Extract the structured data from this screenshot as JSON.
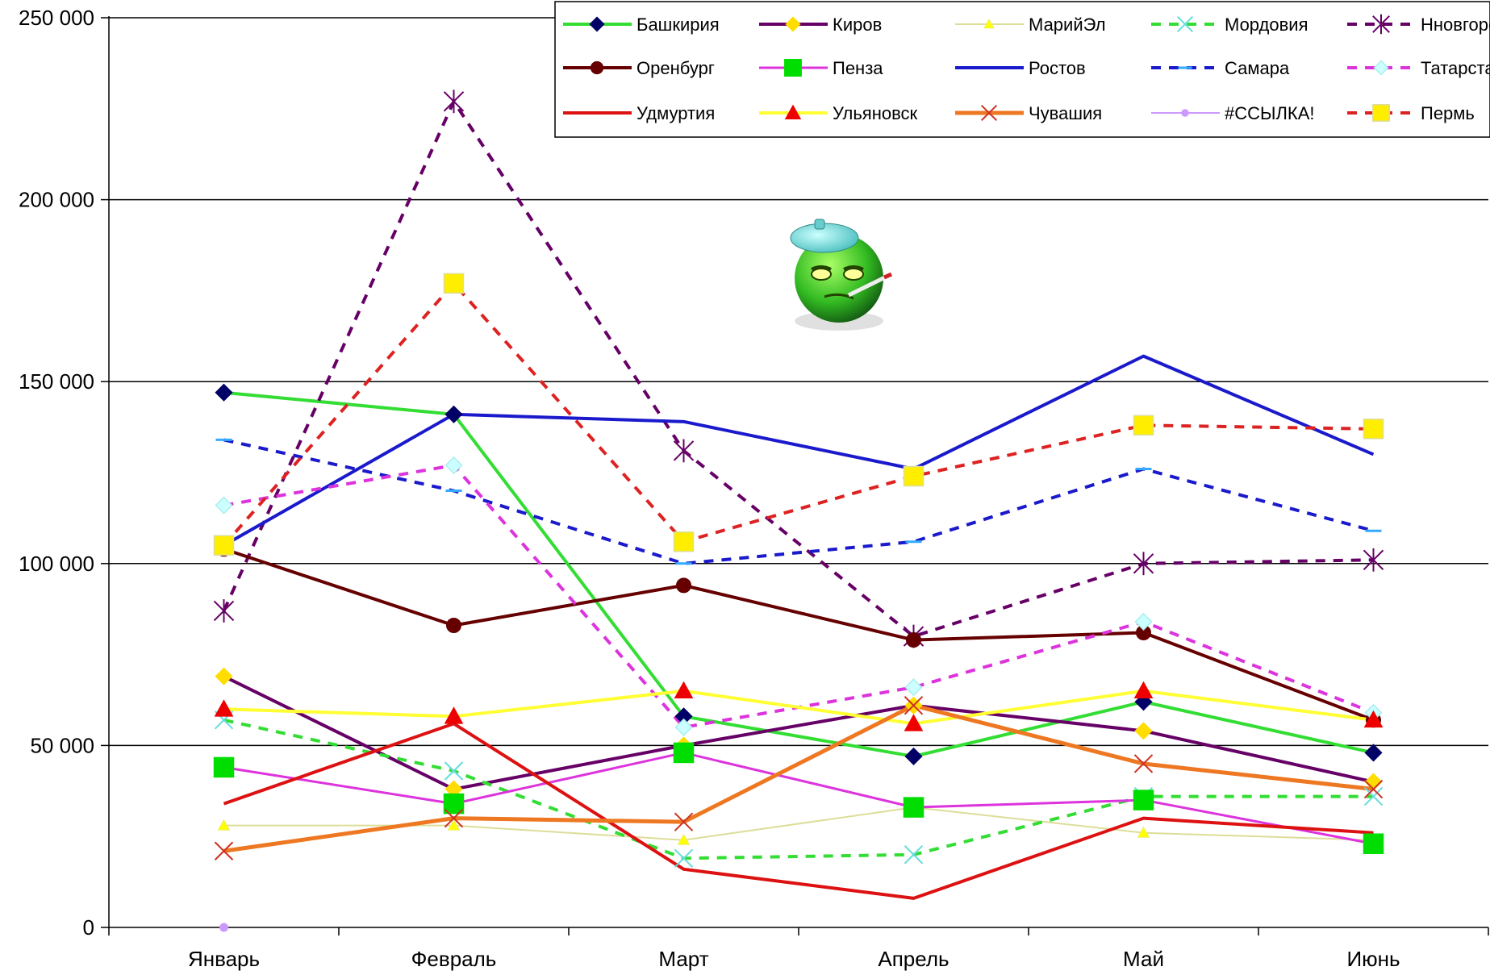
{
  "chart_data": {
    "type": "line",
    "categories": [
      "Январь",
      "Февраль",
      "Март",
      "Апрель",
      "Май",
      "Июнь"
    ],
    "ylim": [
      0,
      250000
    ],
    "yticks": [
      0,
      50000,
      100000,
      150000,
      200000,
      250000
    ],
    "ytick_labels": [
      "0",
      "50 000",
      "100 000",
      "150 000",
      "200 000",
      "250 000"
    ],
    "grid": true,
    "legend_position": "top-right",
    "series": [
      {
        "name": "Башкирия",
        "values": [
          147000,
          141000,
          58000,
          47000,
          62000,
          48000
        ],
        "color": "#33dd33",
        "dash": "solid",
        "width": 4,
        "marker": "diamond",
        "marker_fill": "#000066",
        "marker_stroke": "#000066"
      },
      {
        "name": "Киров",
        "values": [
          69000,
          38000,
          50000,
          61000,
          54000,
          40000
        ],
        "color": "#660066",
        "dash": "solid",
        "width": 4,
        "marker": "diamond",
        "marker_fill": "#ffdd00",
        "marker_stroke": "#ffdd00"
      },
      {
        "name": "МарийЭл",
        "values": [
          28000,
          28000,
          24000,
          33000,
          26000,
          24000
        ],
        "color": "#dddd99",
        "dash": "solid",
        "width": 2,
        "marker": "triangle",
        "marker_fill": "#ffff00",
        "marker_stroke": "#eeee66"
      },
      {
        "name": "Мордовия",
        "values": [
          57000,
          43000,
          19000,
          20000,
          36000,
          36000
        ],
        "color": "#33dd33",
        "dash": "dashed",
        "width": 4,
        "marker": "x",
        "marker_fill": "none",
        "marker_stroke": "#66dddd"
      },
      {
        "name": "Нновгород",
        "values": [
          87000,
          227000,
          131000,
          80000,
          100000,
          101000
        ],
        "color": "#660066",
        "dash": "dashed",
        "width": 4,
        "marker": "star",
        "marker_fill": "none",
        "marker_stroke": "#660066"
      },
      {
        "name": "Оренбург",
        "values": [
          104000,
          83000,
          94000,
          79000,
          81000,
          57000
        ],
        "color": "#660000",
        "dash": "solid",
        "width": 4,
        "marker": "circle",
        "marker_fill": "#660000",
        "marker_stroke": "#660000"
      },
      {
        "name": "Пенза",
        "values": [
          44000,
          34000,
          48000,
          33000,
          35000,
          23000
        ],
        "color": "#dd33dd",
        "dash": "solid",
        "width": 3,
        "marker": "square",
        "marker_fill": "#00dd00",
        "marker_stroke": "#00dd00"
      },
      {
        "name": "Ростов",
        "values": [
          105000,
          141000,
          139000,
          126000,
          157000,
          130000
        ],
        "color": "#1a1acc",
        "dash": "solid",
        "width": 4,
        "marker": "none",
        "marker_fill": "none",
        "marker_stroke": "none"
      },
      {
        "name": "Самара",
        "values": [
          134000,
          120000,
          100000,
          106000,
          126000,
          109000
        ],
        "color": "#1a1acc",
        "dash": "dashed",
        "width": 4,
        "marker": "dash",
        "marker_fill": "none",
        "marker_stroke": "#33aaff"
      },
      {
        "name": "Татарстан",
        "values": [
          116000,
          127000,
          55000,
          66000,
          84000,
          59000
        ],
        "color": "#dd33dd",
        "dash": "dashed",
        "width": 4,
        "marker": "diamond",
        "marker_fill": "#ccffff",
        "marker_stroke": "#aaeeee"
      },
      {
        "name": "Удмуртия",
        "values": [
          34000,
          56000,
          16000,
          8000,
          30000,
          26000
        ],
        "color": "#dd1111",
        "dash": "solid",
        "width": 4,
        "marker": "none",
        "marker_fill": "none",
        "marker_stroke": "none"
      },
      {
        "name": "Ульяновск",
        "values": [
          60000,
          58000,
          65000,
          56000,
          65000,
          57000
        ],
        "color": "#ffff33",
        "dash": "solid",
        "width": 4,
        "marker": "triangle",
        "marker_fill": "#ee0000",
        "marker_stroke": "#ee0000"
      },
      {
        "name": "Чувашия",
        "values": [
          21000,
          30000,
          29000,
          61000,
          45000,
          38000
        ],
        "color": "#ee7722",
        "dash": "solid",
        "width": 5,
        "marker": "x",
        "marker_fill": "none",
        "marker_stroke": "#cc3322"
      },
      {
        "name": "#ССЫЛКА!",
        "values": [
          0,
          null,
          null,
          null,
          null,
          null
        ],
        "color": "#cc99ff",
        "dash": "solid",
        "width": 2,
        "marker": "circle-small",
        "marker_fill": "#cc99ff",
        "marker_stroke": "#cc99ff"
      },
      {
        "name": "Пермь",
        "values": [
          105000,
          177000,
          106000,
          124000,
          138000,
          137000
        ],
        "color": "#dd2222",
        "dash": "dashed",
        "width": 4,
        "marker": "square",
        "marker_fill": "#ffee00",
        "marker_stroke": "#dddd99"
      }
    ]
  },
  "decor": {
    "emoticon": "sick-smiley-icon",
    "emoticon_face_color": "#33cc33",
    "emoticon_cap_color": "#66dddd"
  }
}
